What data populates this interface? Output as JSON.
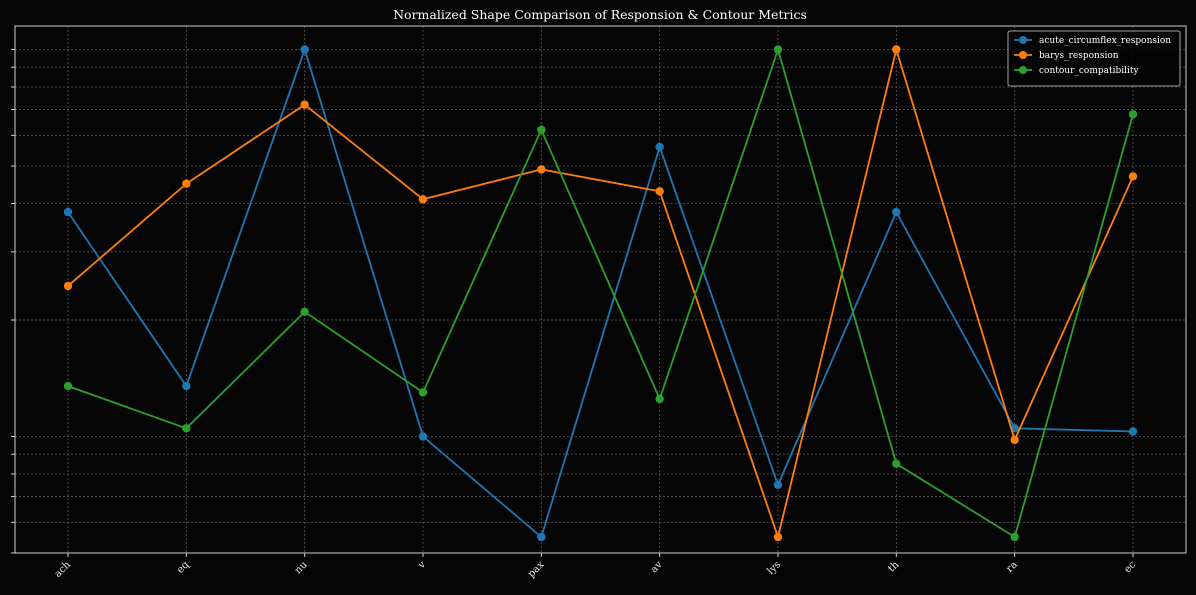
{
  "chart_data": {
    "type": "line",
    "title": "Normalized Shape Comparison of Responsion & Contour Metrics",
    "xlabel": "",
    "ylabel": "",
    "y_scale": "log",
    "ylim": [
      0.05,
      1.15
    ],
    "grid": true,
    "legend_position": "top-right",
    "categories": [
      "ach",
      "eq",
      "nu",
      "v",
      "pax",
      "av",
      "lys",
      "th",
      "ra",
      "ec"
    ],
    "series": [
      {
        "name": "acute_circumflex_responsion",
        "color": "#1f77b4",
        "values": [
          0.38,
          0.135,
          1.0,
          0.1,
          0.055,
          0.56,
          0.075,
          0.38,
          0.105,
          0.103
        ]
      },
      {
        "name": "barys_responsion",
        "color": "#ff7f0e",
        "values": [
          0.245,
          0.45,
          0.72,
          0.41,
          0.49,
          0.43,
          0.055,
          1.0,
          0.098,
          0.47
        ]
      },
      {
        "name": "contour_compatibility",
        "color": "#2ca02c",
        "values": [
          0.135,
          0.105,
          0.21,
          0.13,
          0.62,
          0.125,
          1.0,
          0.085,
          0.055,
          0.68
        ]
      }
    ]
  }
}
